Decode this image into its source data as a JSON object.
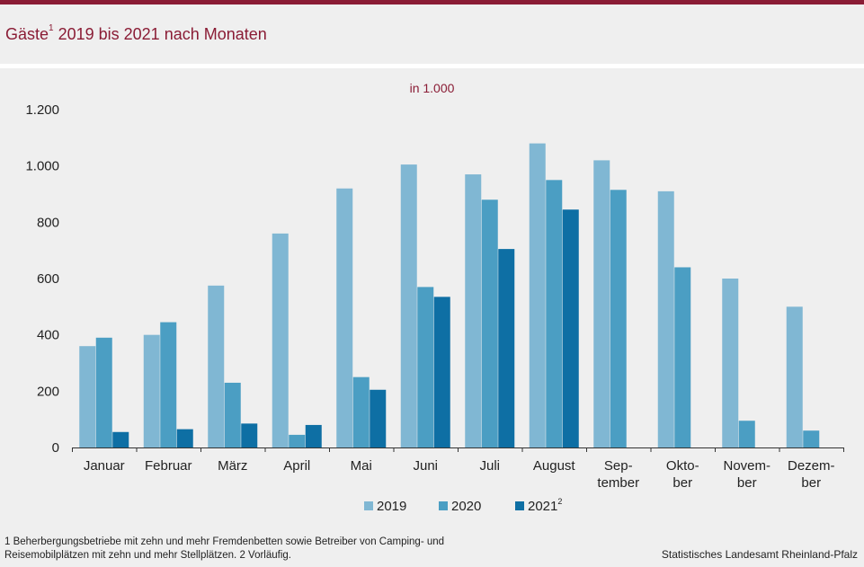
{
  "header": {
    "title": "Gäste",
    "title_sup": "1",
    "title_rest": " 2019 bis 2021 nach Monaten",
    "unit": "in 1.000"
  },
  "colors": {
    "brand": "#8a1c35",
    "s2019": "#80b7d3",
    "s2020": "#4b9ec3",
    "s2021": "#0e6fa4"
  },
  "chart_data": {
    "type": "bar",
    "categories": [
      "Januar",
      "Februar",
      "März",
      "April",
      "Mai",
      "Juni",
      "Juli",
      "August",
      "Sep-\ntember",
      "Okto-\nber",
      "Novem-\nber",
      "Dezem-\nber"
    ],
    "series": [
      {
        "name": "2019",
        "values": [
          360,
          400,
          575,
          760,
          920,
          1005,
          970,
          1080,
          1020,
          910,
          600,
          500
        ]
      },
      {
        "name": "2020",
        "values": [
          390,
          445,
          230,
          45,
          250,
          570,
          880,
          950,
          915,
          640,
          95,
          60
        ]
      },
      {
        "name": "2021",
        "sup": "2",
        "values": [
          55,
          65,
          85,
          80,
          205,
          535,
          705,
          845,
          null,
          null,
          null,
          null
        ]
      }
    ],
    "ylim": [
      0,
      1200
    ],
    "yticks": [
      0,
      200,
      400,
      600,
      800,
      1000,
      1200
    ],
    "ytick_labels": [
      "0",
      "200",
      "400",
      "600",
      "800",
      "1.000",
      "1.200"
    ],
    "ylabel": "in 1.000",
    "xlabel": "",
    "legend": "bottom-center"
  },
  "footnote": {
    "line1": "1 Beherbergungsbetriebe  mit zehn und mehr Fremdenbetten  sowie Betreiber von Camping-  und",
    "line2": "Reisemobilplätzen  mit zehn und  mehr Stellplätzen. 2 Vorläufig."
  },
  "source": "Statistisches Landesamt  Rheinland-Pfalz"
}
